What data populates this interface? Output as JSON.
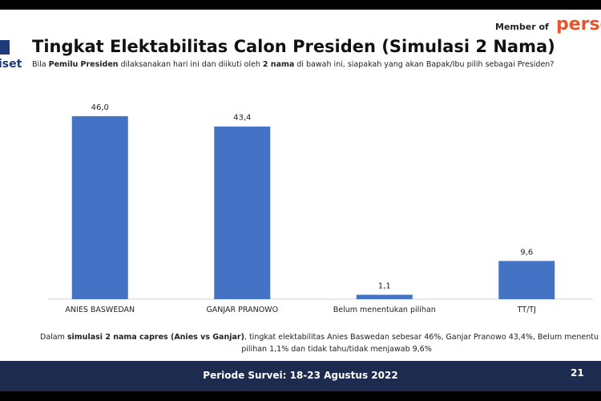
{
  "header": {
    "member_of": "Member of",
    "member_logo": "perse",
    "org_logo": "iset"
  },
  "chart_data": {
    "type": "bar",
    "title": "Tingkat Elektabilitas Calon Presiden (Simulasi 2 Nama)",
    "subtitle_parts": [
      {
        "text": "Bila ",
        "bold": false
      },
      {
        "text": "Pemilu Presiden",
        "bold": true
      },
      {
        "text": " dilaksanakan hari ini dan diikuti oleh ",
        "bold": false
      },
      {
        "text": "2 nama",
        "bold": true
      },
      {
        "text": " di bawah ini, siapakah yang akan Bapak/Ibu pilih sebagai Presiden?",
        "bold": false
      }
    ],
    "categories": [
      "ANIES BASWEDAN",
      "GANJAR PRANOWO",
      "Belum menentukan pilihan",
      "TT/TJ"
    ],
    "values": [
      46.0,
      43.4,
      1.1,
      9.6
    ],
    "value_labels": [
      "46,0",
      "43,4",
      "1,1",
      "9,6"
    ],
    "color": "#4472c4",
    "ylim": [
      0,
      50
    ]
  },
  "note": {
    "lines": [
      [
        {
          "text": "Dalam ",
          "bold": false
        },
        {
          "text": "simulasi 2 nama capres (Anies vs Ganjar)",
          "bold": true
        },
        {
          "text": ", tingkat elektabilitas Anies Baswedan sebesar 46%, Ganjar Pranowo 43,4%, Belum menentu",
          "bold": false
        }
      ],
      [
        {
          "text": "pilihan 1,1% dan tidak tahu/tidak menjawab 9,6%",
          "bold": false
        }
      ]
    ]
  },
  "footer": {
    "period": "Periode Survei: 18-23 Agustus 2022",
    "page": "21"
  }
}
